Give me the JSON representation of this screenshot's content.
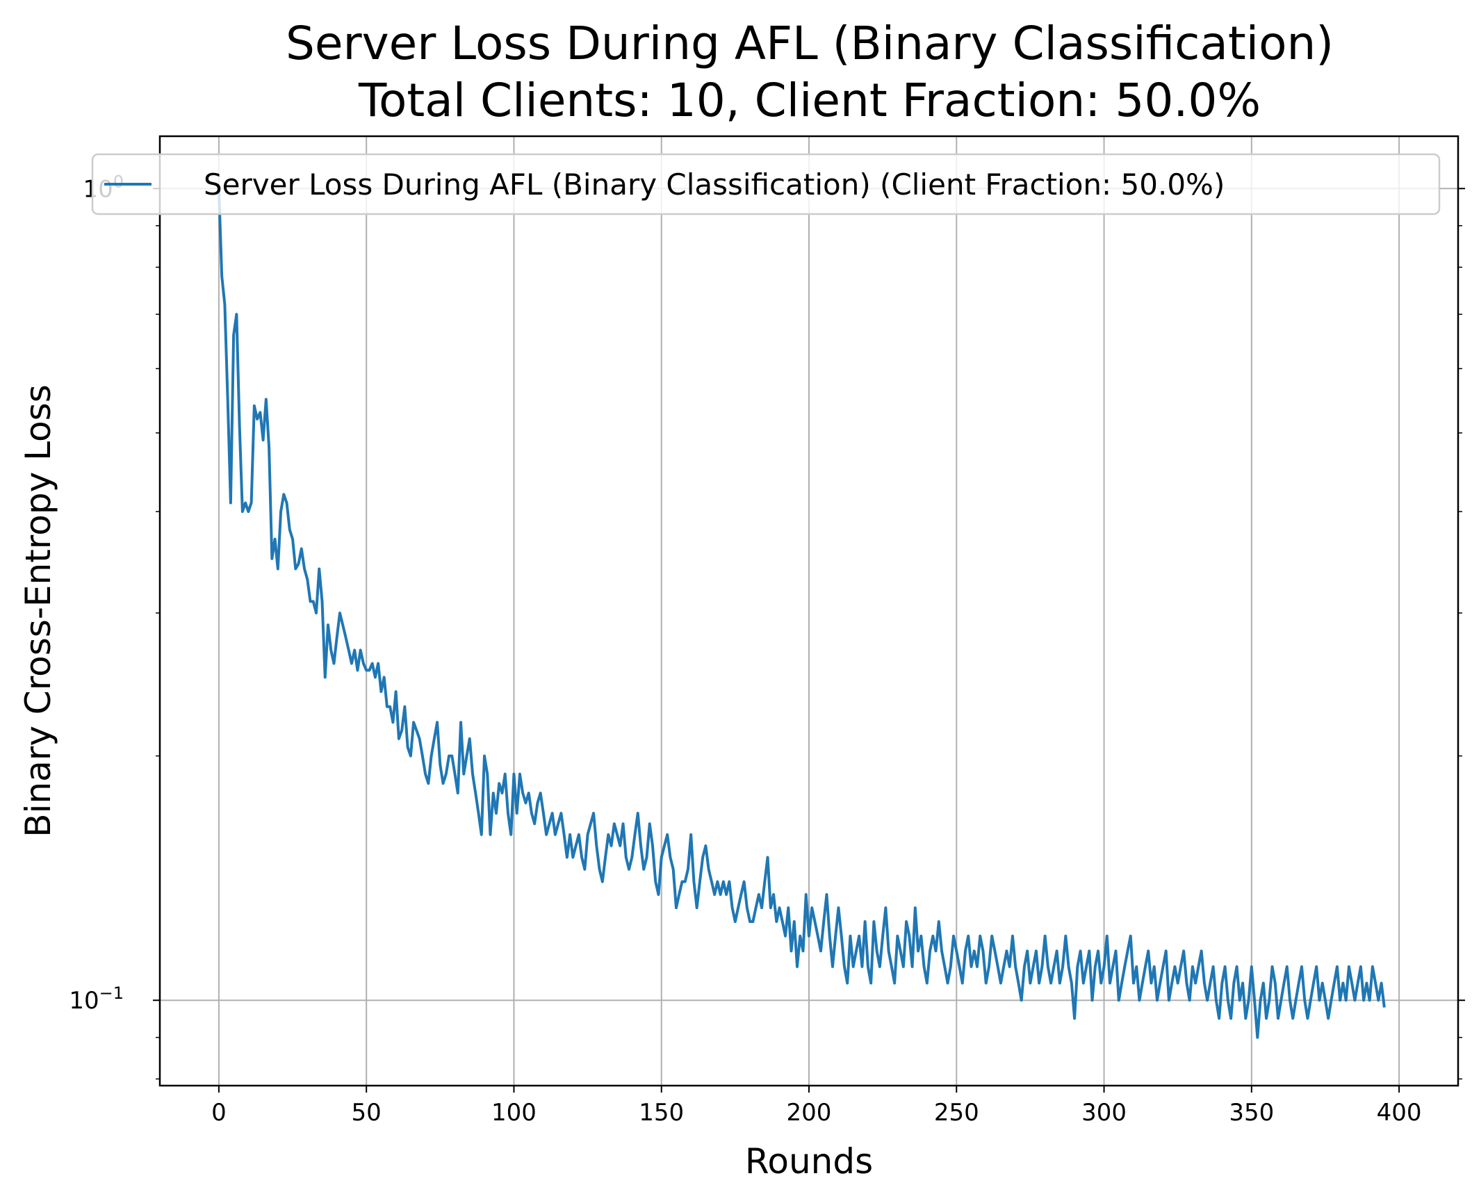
{
  "chart_data": {
    "type": "line",
    "title_line1": "Server Loss During AFL (Binary Classification)",
    "title_line2": "Total Clients: 10, Client Fraction: 50.0%",
    "xlabel": "Rounds",
    "ylabel": "Binary Cross-Entropy Loss",
    "xlim": [
      -20,
      420
    ],
    "ylim": [
      0.0785,
      1.16
    ],
    "yscale": "log",
    "grid": true,
    "legend_position": "top",
    "x_ticks": [
      0,
      50,
      100,
      150,
      200,
      250,
      300,
      350,
      400
    ],
    "x_tick_labels": [
      "0",
      "50",
      "100",
      "150",
      "200",
      "250",
      "300",
      "350",
      "400"
    ],
    "y_ticks": [
      0.1,
      1.0
    ],
    "y_tick_labels": [
      {
        "base": "10",
        "exp": "−1"
      },
      {
        "base": "10",
        "exp": "0"
      }
    ],
    "series": [
      {
        "name": "Server Loss During AFL (Binary Classification) (Client Fraction: 50.0%)",
        "color": "#1f77b4",
        "x_start": 0,
        "x_step": 1,
        "values": [
          1.0,
          0.78,
          0.72,
          0.55,
          0.41,
          0.66,
          0.7,
          0.51,
          0.4,
          0.41,
          0.4,
          0.41,
          0.54,
          0.52,
          0.53,
          0.49,
          0.55,
          0.48,
          0.35,
          0.37,
          0.34,
          0.4,
          0.42,
          0.41,
          0.38,
          0.37,
          0.34,
          0.345,
          0.36,
          0.34,
          0.33,
          0.31,
          0.31,
          0.3,
          0.34,
          0.31,
          0.25,
          0.29,
          0.27,
          0.26,
          0.28,
          0.3,
          0.29,
          0.28,
          0.27,
          0.26,
          0.27,
          0.255,
          0.27,
          0.26,
          0.255,
          0.255,
          0.26,
          0.25,
          0.26,
          0.24,
          0.25,
          0.23,
          0.23,
          0.22,
          0.24,
          0.21,
          0.215,
          0.23,
          0.205,
          0.2,
          0.22,
          0.215,
          0.21,
          0.2,
          0.19,
          0.185,
          0.2,
          0.21,
          0.22,
          0.195,
          0.185,
          0.19,
          0.2,
          0.2,
          0.19,
          0.18,
          0.22,
          0.19,
          0.2,
          0.21,
          0.19,
          0.18,
          0.17,
          0.16,
          0.2,
          0.19,
          0.16,
          0.18,
          0.17,
          0.185,
          0.18,
          0.19,
          0.17,
          0.16,
          0.19,
          0.17,
          0.19,
          0.18,
          0.175,
          0.18,
          0.17,
          0.165,
          0.175,
          0.18,
          0.17,
          0.16,
          0.165,
          0.17,
          0.16,
          0.165,
          0.17,
          0.16,
          0.15,
          0.16,
          0.15,
          0.155,
          0.16,
          0.15,
          0.145,
          0.16,
          0.165,
          0.17,
          0.155,
          0.145,
          0.14,
          0.15,
          0.16,
          0.155,
          0.165,
          0.16,
          0.155,
          0.165,
          0.15,
          0.145,
          0.15,
          0.16,
          0.17,
          0.155,
          0.145,
          0.15,
          0.165,
          0.155,
          0.14,
          0.135,
          0.15,
          0.155,
          0.16,
          0.15,
          0.145,
          0.13,
          0.135,
          0.14,
          0.14,
          0.145,
          0.16,
          0.14,
          0.13,
          0.14,
          0.15,
          0.155,
          0.145,
          0.14,
          0.135,
          0.14,
          0.135,
          0.14,
          0.135,
          0.14,
          0.13,
          0.125,
          0.13,
          0.135,
          0.14,
          0.13,
          0.125,
          0.125,
          0.13,
          0.135,
          0.13,
          0.14,
          0.15,
          0.13,
          0.135,
          0.125,
          0.13,
          0.125,
          0.12,
          0.13,
          0.115,
          0.125,
          0.11,
          0.12,
          0.115,
          0.135,
          0.12,
          0.13,
          0.125,
          0.12,
          0.115,
          0.125,
          0.135,
          0.12,
          0.11,
          0.12,
          0.13,
          0.12,
          0.11,
          0.105,
          0.12,
          0.11,
          0.115,
          0.12,
          0.11,
          0.125,
          0.11,
          0.105,
          0.125,
          0.115,
          0.11,
          0.12,
          0.13,
          0.115,
          0.11,
          0.105,
          0.12,
          0.115,
          0.11,
          0.125,
          0.12,
          0.11,
          0.13,
          0.115,
          0.12,
          0.11,
          0.105,
          0.115,
          0.12,
          0.115,
          0.125,
          0.115,
          0.11,
          0.105,
          0.11,
          0.12,
          0.115,
          0.11,
          0.105,
          0.115,
          0.12,
          0.11,
          0.115,
          0.11,
          0.12,
          0.115,
          0.105,
          0.11,
          0.12,
          0.115,
          0.11,
          0.105,
          0.11,
          0.115,
          0.11,
          0.12,
          0.11,
          0.105,
          0.1,
          0.11,
          0.115,
          0.105,
          0.11,
          0.115,
          0.105,
          0.11,
          0.12,
          0.11,
          0.105,
          0.11,
          0.115,
          0.105,
          0.11,
          0.12,
          0.11,
          0.105,
          0.095,
          0.11,
          0.115,
          0.105,
          0.11,
          0.115,
          0.1,
          0.11,
          0.115,
          0.105,
          0.11,
          0.12,
          0.105,
          0.11,
          0.115,
          0.1,
          0.105,
          0.11,
          0.115,
          0.12,
          0.105,
          0.11,
          0.1,
          0.105,
          0.11,
          0.115,
          0.105,
          0.11,
          0.1,
          0.105,
          0.11,
          0.115,
          0.1,
          0.105,
          0.11,
          0.105,
          0.11,
          0.115,
          0.105,
          0.1,
          0.11,
          0.105,
          0.11,
          0.115,
          0.105,
          0.1,
          0.105,
          0.11,
          0.1,
          0.095,
          0.105,
          0.11,
          0.1,
          0.095,
          0.105,
          0.11,
          0.1,
          0.105,
          0.095,
          0.1,
          0.11,
          0.1,
          0.09,
          0.1,
          0.105,
          0.095,
          0.1,
          0.11,
          0.105,
          0.095,
          0.1,
          0.105,
          0.11,
          0.1,
          0.095,
          0.1,
          0.105,
          0.11,
          0.1,
          0.095,
          0.1,
          0.105,
          0.11,
          0.1,
          0.105,
          0.1,
          0.095,
          0.1,
          0.105,
          0.11,
          0.1,
          0.105,
          0.1,
          0.11,
          0.105,
          0.1,
          0.105,
          0.11,
          0.1,
          0.105,
          0.1,
          0.11,
          0.105,
          0.1,
          0.105,
          0.098
        ]
      }
    ]
  }
}
